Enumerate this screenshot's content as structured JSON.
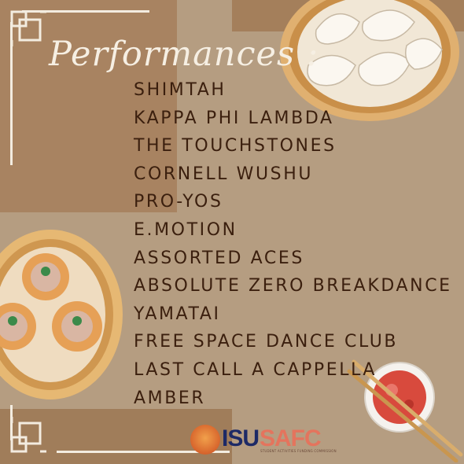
{
  "title": "Performances :",
  "performances": [
    "SHIMTAH",
    "KAPPA PHI LAMBDA",
    "THE TOUCHSTONES",
    "CORNELL WUSHU",
    "PRO-YOS",
    "E.MOTION",
    "ASSORTED ACES",
    "ABSOLUTE ZERO BREAKDANCE",
    "YAMATAI",
    "FREE SPACE DANCE CLUB",
    "LAST CALL A CAPPELLA",
    "AMBER"
  ],
  "logos": {
    "isu": "ISU",
    "safc": "SAFC",
    "safc_subtitle": "STUDENT ACTIVITIES FUNDING COMMISSION"
  },
  "colors": {
    "background": "#b59d81",
    "panel_dark": "#a07d5a",
    "title": "#f6efe3",
    "list_text": "#3b1f0e"
  },
  "icons": [
    "dumpling-steamer-icon",
    "siu-mai-steamer-icon",
    "chopsticks-sauce-icon",
    "lucky-knot-icon",
    "tree-logo-icon"
  ]
}
